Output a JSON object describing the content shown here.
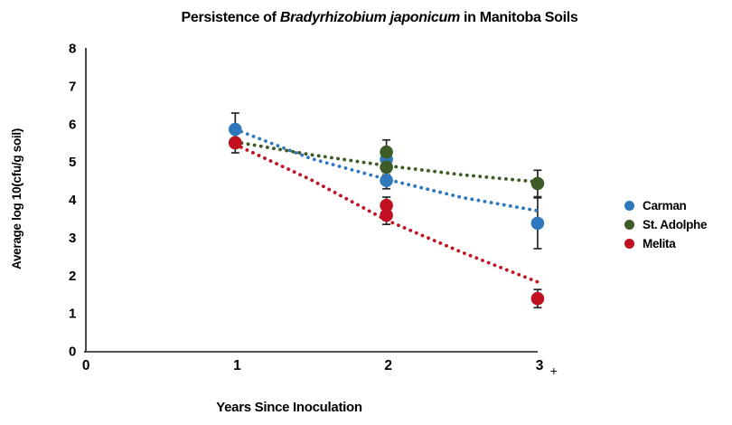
{
  "chart_data": {
    "type": "scatter",
    "title_parts": {
      "prefix": "Persistence of ",
      "italic": "Bradyrhizobium japonicum",
      "suffix": " in Manitoba Soils"
    },
    "xlabel": "Years Since Inoculation",
    "ylabel": "Average log 10(cfu/g soil)",
    "xlim": [
      0,
      3
    ],
    "ylim": [
      0,
      8
    ],
    "x_ticks": [
      0,
      1,
      2,
      3
    ],
    "x_axis_suffix": "+",
    "y_ticks": [
      0,
      1,
      2,
      3,
      4,
      5,
      6,
      7,
      8
    ],
    "grid": false,
    "legend_position": "right",
    "marker": "circle",
    "trend_style": "dotted",
    "series": [
      {
        "name": "Carman",
        "color": "#2E78BE",
        "points": [
          {
            "x": 1,
            "y": 5.85,
            "err": 0.43
          },
          {
            "x": 2,
            "y": 5.06,
            "err": 0.25
          },
          {
            "x": 2,
            "y": 4.5,
            "err": 0.22
          },
          {
            "x": 3,
            "y": 3.37,
            "err": 0.67
          }
        ],
        "trend": [
          [
            1,
            5.85
          ],
          [
            1.5,
            5.08
          ],
          [
            2,
            4.53
          ],
          [
            2.5,
            4.05
          ],
          [
            3,
            3.7
          ]
        ]
      },
      {
        "name": "St. Adolphe",
        "color": "#3D5C28",
        "points": [
          {
            "x": 1,
            "y": 5.5,
            "err": 0
          },
          {
            "x": 2,
            "y": 5.25,
            "err": 0.32
          },
          {
            "x": 2,
            "y": 4.85,
            "err": 0.2
          },
          {
            "x": 3,
            "y": 4.42,
            "err": 0.35
          }
        ],
        "trend": [
          [
            1,
            5.52
          ],
          [
            1.5,
            5.18
          ],
          [
            2,
            4.89
          ],
          [
            2.5,
            4.65
          ],
          [
            3,
            4.46
          ]
        ]
      },
      {
        "name": "Melita",
        "color": "#C01021",
        "points": [
          {
            "x": 1,
            "y": 5.49,
            "err": 0.26
          },
          {
            "x": 2,
            "y": 3.84,
            "err": 0.22
          },
          {
            "x": 2,
            "y": 3.58,
            "err": 0.24
          },
          {
            "x": 3,
            "y": 1.38,
            "err": 0.24
          }
        ],
        "trend": [
          [
            1,
            5.45
          ],
          [
            1.5,
            4.52
          ],
          [
            2,
            3.45
          ],
          [
            2.5,
            2.6
          ],
          [
            3,
            1.82
          ]
        ]
      }
    ],
    "axis_color": "#1a1a1a"
  }
}
